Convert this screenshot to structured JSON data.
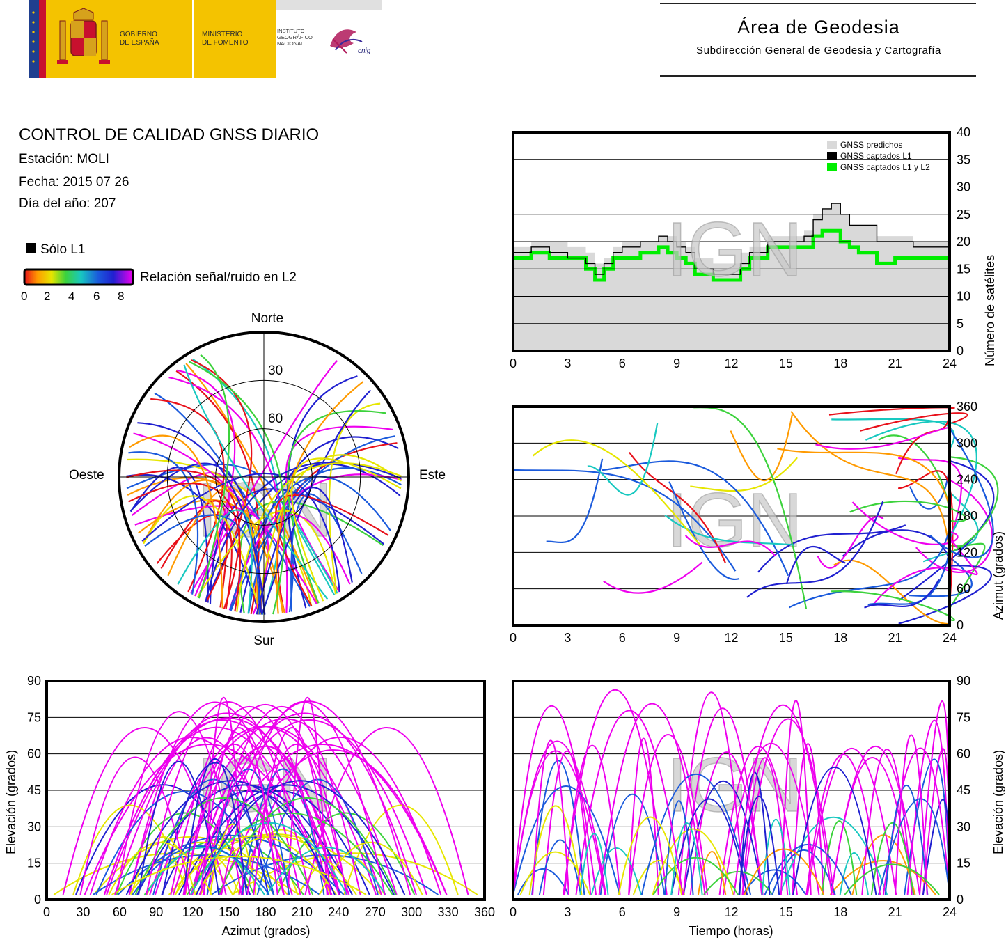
{
  "header": {
    "gov_label_1": "GOBIERNO",
    "gov_label_2": "DE ESPAÑA",
    "ministry_label_1": "MINISTERIO",
    "ministry_label_2": "DE FOMENTO",
    "ign_label_1": "INSTITUTO",
    "ign_label_2": "GEOGRÁFICO",
    "ign_label_3": "NACIONAL",
    "cnig_label": "cnig",
    "area_title": "Área de Geodesia",
    "area_subtitle": "Subdirección General de Geodesia y Cartografía"
  },
  "info": {
    "title": "CONTROL DE CALIDAD GNSS DIARIO",
    "station": "Estación: MOLI",
    "date": "Fecha: 2015 07 26",
    "doy": "Día del año: 207",
    "l1_only_label": "Sólo L1",
    "snr_label": "Relación señal/ruido en L2",
    "snr_ticks": [
      "0",
      "2",
      "4",
      "6",
      "8"
    ]
  },
  "colors": {
    "predicted": "#d9d9d9",
    "l1": "#000000",
    "l1l2": "#00ee00",
    "snr_scale": [
      "#e8101a",
      "#ff9a00",
      "#e6e600",
      "#3cd23c",
      "#18c8c0",
      "#1a5adc",
      "#2020d0",
      "#ee00ee"
    ],
    "watermark": "#c8c8c8"
  },
  "watermark": "IGN",
  "chart_data": [
    {
      "type": "area",
      "ylabel": "Número de satélites",
      "x_ticks": [
        "0",
        "3",
        "6",
        "9",
        "12",
        "15",
        "18",
        "21",
        "24"
      ],
      "y_ticks": [
        "0",
        "5",
        "10",
        "15",
        "20",
        "25",
        "30",
        "35",
        "40"
      ],
      "xlim": [
        0,
        24
      ],
      "ylim": [
        0,
        40
      ],
      "legend": [
        "GNSS predichos",
        "GNSS captados L1",
        "GNSS captados L1 y L2"
      ],
      "legend_position": "top-right",
      "x": [
        0,
        1,
        2,
        3,
        4,
        4.5,
        5,
        5.5,
        6,
        7,
        8,
        8.5,
        9,
        9.5,
        10,
        11,
        12,
        12.5,
        13,
        14,
        15,
        16,
        16.5,
        17,
        17.5,
        18,
        18.5,
        19,
        20,
        21,
        22,
        23,
        24
      ],
      "series": [
        {
          "name": "GNSS predichos",
          "values": [
            19,
            20,
            20,
            19,
            18,
            16,
            17,
            19,
            20,
            20,
            21,
            21,
            20,
            19,
            17,
            16,
            16,
            18,
            19,
            21,
            21,
            22,
            25,
            26,
            27,
            25,
            23,
            23,
            21,
            21,
            20,
            20,
            19
          ]
        },
        {
          "name": "GNSS captados L1",
          "values": [
            18,
            19,
            18,
            17,
            16,
            14,
            16,
            18,
            19,
            20,
            21,
            20,
            19,
            18,
            15,
            14,
            14,
            16,
            18,
            20,
            20,
            21,
            24,
            26,
            27,
            25,
            23,
            23,
            20,
            20,
            19,
            19,
            18
          ]
        },
        {
          "name": "GNSS captados L1 y L2",
          "values": [
            17,
            18,
            17,
            17,
            15,
            13,
            15,
            17,
            17,
            18,
            19,
            18,
            17,
            16,
            14,
            13,
            13,
            15,
            17,
            19,
            19,
            19,
            21,
            22,
            22,
            20,
            19,
            18,
            16,
            17,
            17,
            17,
            17
          ]
        }
      ]
    },
    {
      "type": "scatter",
      "subtype": "skyplot",
      "direction_labels": {
        "north": "Norte",
        "south": "Sur",
        "east": "Este",
        "west": "Oeste"
      },
      "ring_labels": [
        "30",
        "60"
      ]
    },
    {
      "type": "scatter",
      "ylabel": "Azimut (grados)",
      "x_ticks": [
        "0",
        "3",
        "6",
        "9",
        "12",
        "15",
        "18",
        "21",
        "24"
      ],
      "y_ticks": [
        "0",
        "60",
        "120",
        "180",
        "240",
        "300",
        "360"
      ],
      "xlim": [
        0,
        24
      ],
      "ylim": [
        0,
        360
      ]
    },
    {
      "type": "scatter",
      "xlabel": "Azimut (grados)",
      "ylabel": "Elevación (grados)",
      "x_ticks": [
        "0",
        "30",
        "60",
        "90",
        "120",
        "150",
        "180",
        "210",
        "240",
        "270",
        "300",
        "330",
        "360"
      ],
      "y_ticks": [
        "0",
        "15",
        "30",
        "45",
        "60",
        "75",
        "90"
      ],
      "xlim": [
        0,
        360
      ],
      "ylim": [
        0,
        90
      ]
    },
    {
      "type": "scatter",
      "xlabel": "Tiempo (horas)",
      "ylabel": "Elevación (grados)",
      "x_ticks": [
        "0",
        "3",
        "6",
        "9",
        "12",
        "15",
        "18",
        "21",
        "24"
      ],
      "y_ticks": [
        "0",
        "15",
        "30",
        "45",
        "60",
        "75",
        "90"
      ],
      "xlim": [
        0,
        24
      ],
      "ylim": [
        0,
        90
      ]
    }
  ]
}
